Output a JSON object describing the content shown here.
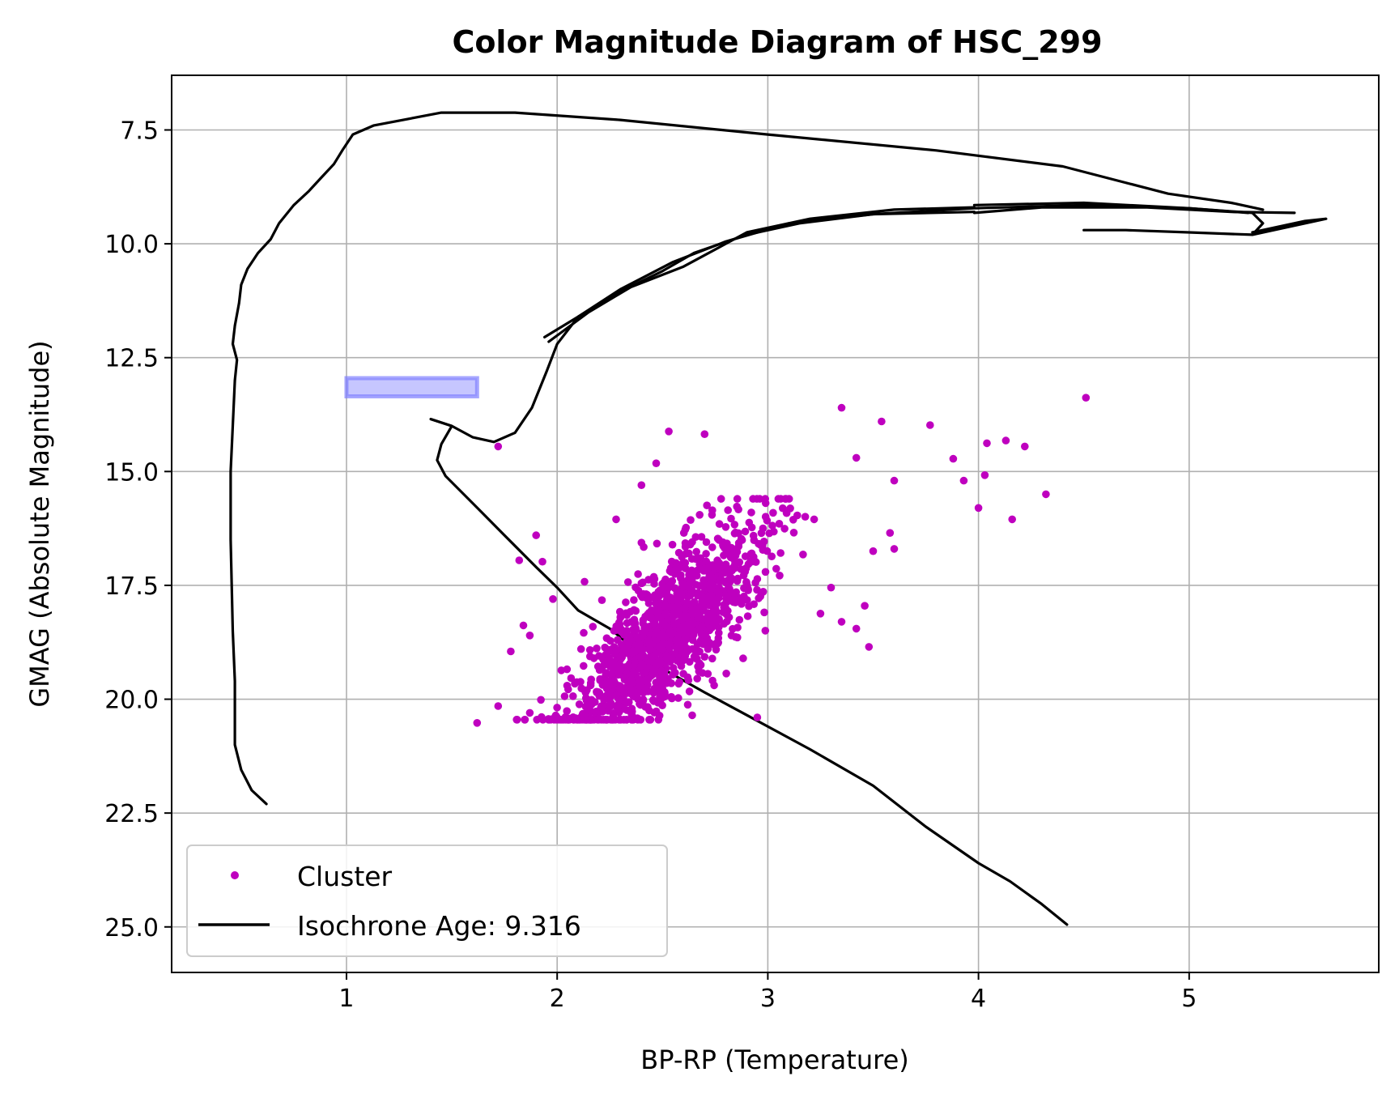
{
  "chart_data": {
    "type": "scatter",
    "title": "Color Magnitude Diagram of HSC_299",
    "xlabel": "BP-RP (Temperature)",
    "ylabel": "GMAG (Absolute Magnitude)",
    "xlim": [
      0.17,
      5.9
    ],
    "ylim": [
      26.0,
      6.3
    ],
    "y_inverted": true,
    "grid": true,
    "legend_placement": "lower-left",
    "x_ticks": [
      1,
      2,
      3,
      4,
      5
    ],
    "y_ticks": [
      7.5,
      10.0,
      12.5,
      15.0,
      17.5,
      20.0,
      22.5,
      25.0
    ],
    "colors": {
      "cluster": "#bf00bf",
      "isochrone": "#000000",
      "highlight": "#8080ff"
    },
    "series": [
      {
        "name": "Cluster",
        "kind": "scatter",
        "sample_points": [
          [
            1.72,
            14.45
          ],
          [
            2.53,
            14.12
          ],
          [
            2.7,
            14.18
          ],
          [
            3.35,
            13.6
          ],
          [
            4.51,
            13.38
          ],
          [
            3.54,
            13.9
          ],
          [
            3.77,
            13.98
          ],
          [
            4.04,
            14.38
          ],
          [
            4.13,
            14.32
          ],
          [
            4.22,
            14.45
          ],
          [
            3.88,
            14.72
          ],
          [
            3.93,
            15.2
          ],
          [
            4.03,
            15.08
          ],
          [
            4.0,
            15.8
          ],
          [
            4.16,
            16.05
          ],
          [
            4.32,
            15.5
          ],
          [
            3.6,
            15.2
          ],
          [
            3.42,
            14.7
          ],
          [
            1.9,
            16.4
          ],
          [
            1.82,
            16.95
          ],
          [
            1.93,
            16.98
          ],
          [
            1.98,
            17.8
          ],
          [
            1.84,
            18.38
          ],
          [
            1.87,
            18.6
          ],
          [
            1.78,
            18.95
          ],
          [
            1.72,
            20.15
          ],
          [
            1.62,
            20.52
          ],
          [
            1.87,
            20.3
          ],
          [
            2.13,
            17.42
          ],
          [
            2.28,
            16.05
          ],
          [
            2.4,
            15.3
          ],
          [
            2.47,
            14.82
          ],
          [
            2.95,
            20.4
          ],
          [
            2.62,
            20.12
          ],
          [
            3.25,
            18.12
          ],
          [
            3.35,
            18.3
          ],
          [
            3.48,
            18.85
          ],
          [
            3.42,
            18.45
          ],
          [
            3.46,
            17.95
          ],
          [
            3.3,
            17.55
          ],
          [
            3.5,
            16.75
          ],
          [
            3.58,
            16.35
          ],
          [
            3.6,
            16.7
          ],
          [
            3.22,
            16.05
          ],
          [
            3.05,
            15.6
          ]
        ]
      },
      {
        "name": "Isochrone Age: 9.316",
        "kind": "line",
        "segments": [
          [
            [
              0.62,
              22.3
            ],
            [
              0.55,
              22.0
            ],
            [
              0.5,
              21.55
            ],
            [
              0.47,
              21.0
            ],
            [
              0.47,
              20.6
            ],
            [
              0.47,
              19.6
            ],
            [
              0.46,
              18.5
            ],
            [
              0.45,
              16.5
            ],
            [
              0.45,
              15.0
            ],
            [
              0.46,
              14.0
            ],
            [
              0.47,
              13.0
            ],
            [
              0.48,
              12.55
            ],
            [
              0.46,
              12.2
            ],
            [
              0.47,
              11.8
            ],
            [
              0.49,
              11.3
            ],
            [
              0.5,
              10.9
            ],
            [
              0.53,
              10.55
            ],
            [
              0.58,
              10.2
            ],
            [
              0.64,
              9.9
            ],
            [
              0.68,
              9.55
            ],
            [
              0.75,
              9.15
            ],
            [
              0.82,
              8.85
            ],
            [
              0.88,
              8.55
            ],
            [
              0.94,
              8.25
            ],
            [
              0.98,
              7.95
            ],
            [
              1.03,
              7.6
            ],
            [
              1.13,
              7.4
            ],
            [
              1.45,
              7.12
            ],
            [
              1.8,
              7.12
            ],
            [
              2.3,
              7.28
            ],
            [
              3.0,
              7.6
            ],
            [
              3.8,
              7.95
            ],
            [
              4.4,
              8.3
            ],
            [
              4.9,
              8.9
            ],
            [
              5.2,
              9.1
            ],
            [
              5.35,
              9.25
            ]
          ],
          [
            [
              3.98,
              9.32
            ],
            [
              4.3,
              9.2
            ],
            [
              4.8,
              9.2
            ],
            [
              5.2,
              9.3
            ],
            [
              5.5,
              9.32
            ]
          ],
          [
            [
              3.98,
              9.15
            ],
            [
              4.5,
              9.1
            ],
            [
              5.0,
              9.22
            ],
            [
              5.28,
              9.32
            ]
          ],
          [
            [
              1.94,
              12.05
            ],
            [
              2.1,
              11.6
            ],
            [
              2.3,
              11.05
            ],
            [
              2.5,
              10.6
            ],
            [
              2.65,
              10.2
            ],
            [
              2.9,
              9.8
            ],
            [
              3.15,
              9.55
            ],
            [
              3.5,
              9.35
            ],
            [
              3.98,
              9.3
            ]
          ],
          [
            [
              1.96,
              12.15
            ],
            [
              2.15,
              11.5
            ],
            [
              2.35,
              10.95
            ],
            [
              2.6,
              10.5
            ],
            [
              2.9,
              9.75
            ],
            [
              3.2,
              9.45
            ],
            [
              3.6,
              9.25
            ],
            [
              3.98,
              9.2
            ]
          ],
          [
            [
              1.4,
              13.85
            ],
            [
              1.5,
              14.0
            ],
            [
              1.6,
              14.25
            ],
            [
              1.7,
              14.35
            ],
            [
              1.8,
              14.15
            ],
            [
              1.88,
              13.6
            ],
            [
              1.95,
              12.8
            ],
            [
              2.0,
              12.2
            ],
            [
              2.1,
              11.6
            ],
            [
              2.3,
              11.0
            ],
            [
              2.55,
              10.4
            ],
            [
              2.8,
              9.95
            ],
            [
              3.1,
              9.55
            ],
            [
              3.5,
              9.35
            ],
            [
              3.98,
              9.22
            ],
            [
              4.5,
              9.15
            ],
            [
              5.0,
              9.22
            ],
            [
              5.3,
              9.32
            ],
            [
              5.35,
              9.55
            ],
            [
              5.3,
              9.8
            ],
            [
              5.0,
              9.75
            ],
            [
              4.7,
              9.7
            ],
            [
              4.5,
              9.7
            ]
          ],
          [
            [
              5.3,
              9.8
            ],
            [
              5.65,
              9.45
            ],
            [
              5.55,
              9.5
            ],
            [
              5.3,
              9.75
            ]
          ],
          [
            [
              1.4,
              13.85
            ],
            [
              1.5,
              14.0
            ],
            [
              1.45,
              14.4
            ],
            [
              1.43,
              14.75
            ],
            [
              1.47,
              15.1
            ],
            [
              1.6,
              15.7
            ],
            [
              1.75,
              16.4
            ],
            [
              1.9,
              17.1
            ],
            [
              2.0,
              17.55
            ],
            [
              2.1,
              18.05
            ],
            [
              2.25,
              18.45
            ],
            [
              2.45,
              19.2
            ],
            [
              2.7,
              19.85
            ],
            [
              2.9,
              20.35
            ],
            [
              3.2,
              21.1
            ],
            [
              3.5,
              21.9
            ],
            [
              3.75,
              22.8
            ],
            [
              4.0,
              23.6
            ],
            [
              4.15,
              24.0
            ],
            [
              4.3,
              24.5
            ],
            [
              4.42,
              24.95
            ]
          ]
        ]
      }
    ],
    "highlight_rect": {
      "x": [
        1.0,
        1.62
      ],
      "y": [
        12.95,
        13.35
      ]
    }
  }
}
